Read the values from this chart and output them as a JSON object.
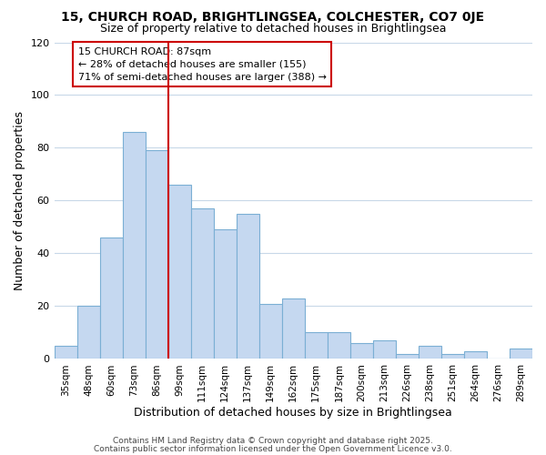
{
  "title1": "15, CHURCH ROAD, BRIGHTLINGSEA, COLCHESTER, CO7 0JE",
  "title2": "Size of property relative to detached houses in Brightlingsea",
  "xlabel": "Distribution of detached houses by size in Brightlingsea",
  "ylabel": "Number of detached properties",
  "bar_labels": [
    "35sqm",
    "48sqm",
    "60sqm",
    "73sqm",
    "86sqm",
    "99sqm",
    "111sqm",
    "124sqm",
    "137sqm",
    "149sqm",
    "162sqm",
    "175sqm",
    "187sqm",
    "200sqm",
    "213sqm",
    "226sqm",
    "238sqm",
    "251sqm",
    "264sqm",
    "276sqm",
    "289sqm"
  ],
  "bar_values": [
    5,
    20,
    46,
    86,
    79,
    66,
    57,
    49,
    55,
    21,
    23,
    10,
    10,
    6,
    7,
    2,
    5,
    2,
    3,
    0,
    4
  ],
  "bar_color": "#c5d8f0",
  "bar_edge_color": "#7bafd4",
  "vline_color": "#cc0000",
  "vline_bar_index": 4,
  "annotation_title": "15 CHURCH ROAD: 87sqm",
  "annotation_line1": "← 28% of detached houses are smaller (155)",
  "annotation_line2": "71% of semi-detached houses are larger (388) →",
  "ylim": [
    0,
    120
  ],
  "yticks": [
    0,
    20,
    40,
    60,
    80,
    100,
    120
  ],
  "footer1": "Contains HM Land Registry data © Crown copyright and database right 2025.",
  "footer2": "Contains public sector information licensed under the Open Government Licence v3.0.",
  "background_color": "#ffffff",
  "grid_color": "#c8d8e8"
}
